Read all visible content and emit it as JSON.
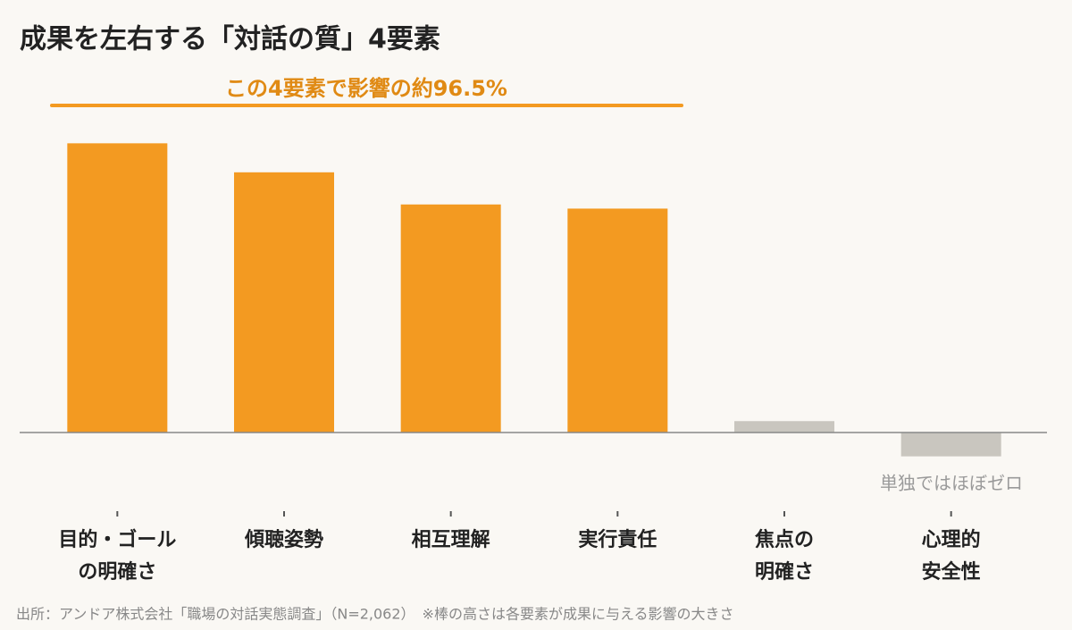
{
  "chart_data": {
    "type": "bar",
    "title": "成果を左右する「対話の質」4要素",
    "annotation": "この4要素で影響の約96.5%",
    "note": "単独ではほぼゼロ",
    "footer": "出所：アンドア株式会社「職場の対話実態調査」（N=2,062）　※棒の高さは各要素が成果に与える影響の大きさ",
    "categories": [
      [
        "目的・ゴール",
        "の明確さ"
      ],
      [
        "傾聴姿勢"
      ],
      [
        "相互理解"
      ],
      [
        "実行責任"
      ],
      [
        "焦点の",
        "明確さ"
      ],
      [
        "心理的",
        "安全性"
      ]
    ],
    "values": [
      27.9,
      25.1,
      22.0,
      21.6,
      1.1,
      -2.3
    ],
    "colors": [
      "#f39a21",
      "#f39a21",
      "#f39a21",
      "#f39a21",
      "#c9c6bf",
      "#c9c6bf"
    ],
    "ylim": [
      -5,
      30
    ]
  }
}
